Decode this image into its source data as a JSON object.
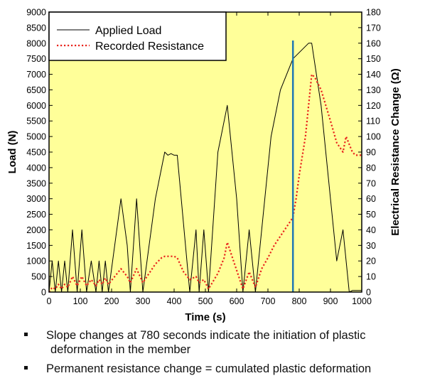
{
  "chart_data": {
    "type": "line",
    "background_color": "#ffff99",
    "x_axis": {
      "label": "Time (s)",
      "range": [
        0,
        1000
      ],
      "ticks": [
        0,
        100,
        200,
        300,
        400,
        500,
        600,
        700,
        800,
        900,
        1000
      ]
    },
    "y_axis_left": {
      "label": "Load (N)",
      "range": [
        0,
        9000
      ],
      "ticks": [
        0,
        500,
        1000,
        1500,
        2000,
        2500,
        3000,
        3500,
        4000,
        4500,
        5000,
        5500,
        6000,
        6500,
        7000,
        7500,
        8000,
        8500,
        9000
      ]
    },
    "y_axis_right": {
      "label": "Electrical Resistance Change (Ω)",
      "range": [
        0,
        180
      ],
      "ticks": [
        0,
        10,
        20,
        30,
        40,
        50,
        60,
        70,
        80,
        90,
        100,
        110,
        120,
        130,
        140,
        150,
        160,
        170,
        180
      ]
    },
    "series": [
      {
        "name": "Applied Load",
        "axis": "left",
        "color": "#000000",
        "style": "solid",
        "x": [
          0,
          10,
          20,
          30,
          40,
          50,
          60,
          75,
          90,
          105,
          120,
          135,
          150,
          160,
          170,
          180,
          190,
          210,
          230,
          250,
          260,
          280,
          300,
          320,
          340,
          350,
          360,
          370,
          380,
          390,
          400,
          410,
          450,
          470,
          480,
          495,
          510,
          540,
          570,
          600,
          620,
          640,
          660,
          680,
          710,
          740,
          780,
          830,
          840,
          870,
          900,
          920,
          940,
          950,
          960,
          970,
          980,
          1000
        ],
        "y": [
          0,
          1000,
          0,
          1000,
          0,
          1000,
          0,
          2000,
          0,
          2000,
          0,
          1000,
          0,
          1000,
          0,
          1000,
          0,
          1500,
          3000,
          1500,
          0,
          3000,
          0,
          1500,
          3000,
          3500,
          4000,
          4500,
          4400,
          4450,
          4400,
          4400,
          0,
          2000,
          0,
          2000,
          0,
          4500,
          6000,
          3000,
          0,
          2000,
          0,
          2000,
          5000,
          6500,
          7500,
          8000,
          8000,
          6000,
          3000,
          1000,
          2000,
          1000,
          0,
          50,
          50,
          50
        ]
      },
      {
        "name": "Recorded Resistance",
        "axis": "right",
        "color": "#e8241d",
        "style": "dotted",
        "x": [
          0,
          10,
          20,
          30,
          40,
          50,
          60,
          75,
          90,
          105,
          120,
          135,
          150,
          160,
          170,
          180,
          190,
          210,
          230,
          250,
          260,
          280,
          300,
          320,
          340,
          360,
          370,
          380,
          400,
          410,
          430,
          450,
          470,
          480,
          495,
          510,
          540,
          560,
          570,
          600,
          620,
          640,
          660,
          680,
          700,
          720,
          740,
          760,
          780,
          790,
          800,
          820,
          840,
          850,
          870,
          900,
          920,
          940,
          950,
          960,
          970,
          980,
          1000
        ],
        "y": [
          0,
          3,
          2,
          5,
          2,
          5,
          3,
          10,
          4,
          10,
          4,
          8,
          4,
          8,
          5,
          9,
          5,
          10,
          15,
          10,
          6,
          15,
          6,
          12,
          18,
          22,
          23,
          23,
          23,
          22,
          13,
          8,
          10,
          6,
          8,
          2,
          12,
          22,
          32,
          14,
          2,
          13,
          3,
          15,
          22,
          30,
          36,
          42,
          48,
          60,
          75,
          100,
          140,
          138,
          130,
          110,
          96,
          90,
          100,
          95,
          90,
          88,
          88
        ]
      }
    ],
    "annotations": [
      {
        "type": "vertical_line",
        "x": 780,
        "color": "#1f77b4"
      }
    ],
    "legend": {
      "position": "top-left",
      "items": [
        "Applied Load",
        "Recorded Resistance"
      ]
    }
  },
  "notes": [
    {
      "line1": "Slope changes at 780 seconds indicate the initiation of plastic",
      "line2": "deformation in the member"
    },
    {
      "line1": "Permanent resistance change = cumulated plastic deformation",
      "line2": ""
    }
  ]
}
